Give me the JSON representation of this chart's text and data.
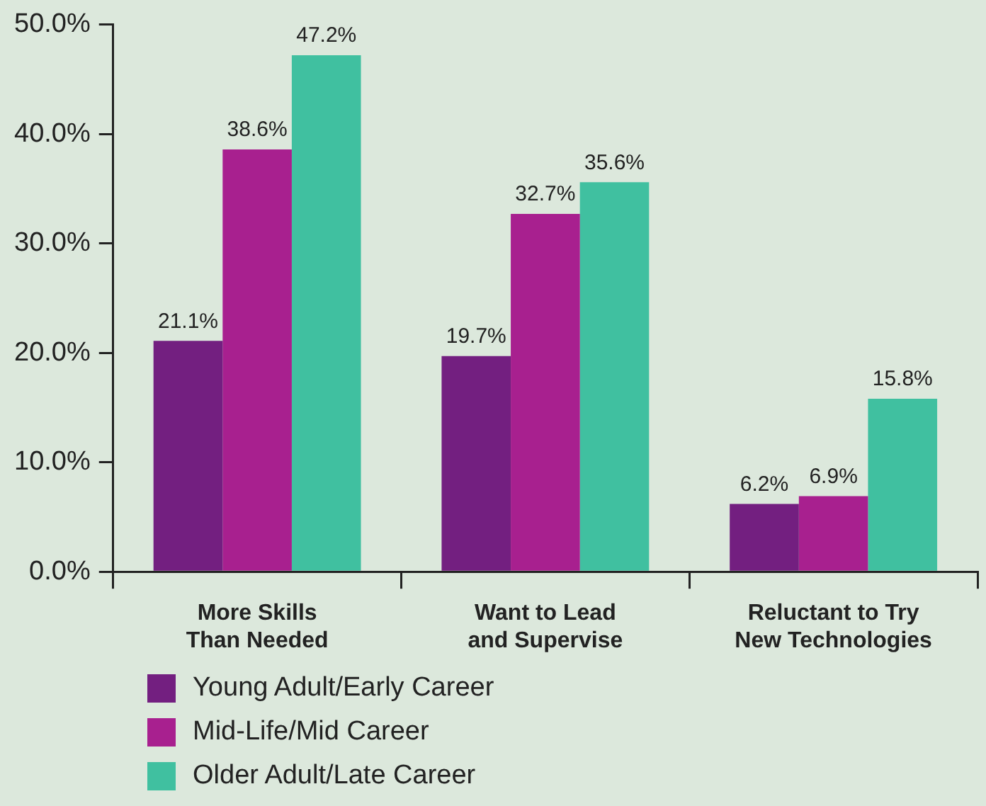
{
  "chart_data": {
    "type": "bar",
    "categories": [
      "More Skills Than Needed",
      "Want to Lead and Supervise",
      "Reluctant to Try New Technologies"
    ],
    "series": [
      {
        "name": "Young Adult/Early Career",
        "color": "#731f80",
        "values": [
          21.1,
          19.7,
          6.2
        ],
        "value_labels": [
          "21.1%",
          "19.7%",
          "6.2%"
        ]
      },
      {
        "name": "Mid-Life/Mid Career",
        "color": "#a8208f",
        "values": [
          38.6,
          32.7,
          6.9
        ],
        "value_labels": [
          "38.6%",
          "32.7%",
          "6.9%"
        ]
      },
      {
        "name": "Older Adult/Late Career",
        "color": "#40c0a0",
        "values": [
          47.2,
          35.6,
          15.8
        ],
        "value_labels": [
          "47.2%",
          "35.6%",
          "15.8%"
        ]
      }
    ],
    "ylim": [
      0,
      50
    ],
    "yticks": [
      {
        "value": 0,
        "label": "0.0%"
      },
      {
        "value": 10,
        "label": "10.0%"
      },
      {
        "value": 20,
        "label": "20.0%"
      },
      {
        "value": 30,
        "label": "30.0%"
      },
      {
        "value": 40,
        "label": "40.0%"
      },
      {
        "value": 50,
        "label": "50.0%"
      }
    ],
    "grid": false,
    "legend": "bottom"
  }
}
